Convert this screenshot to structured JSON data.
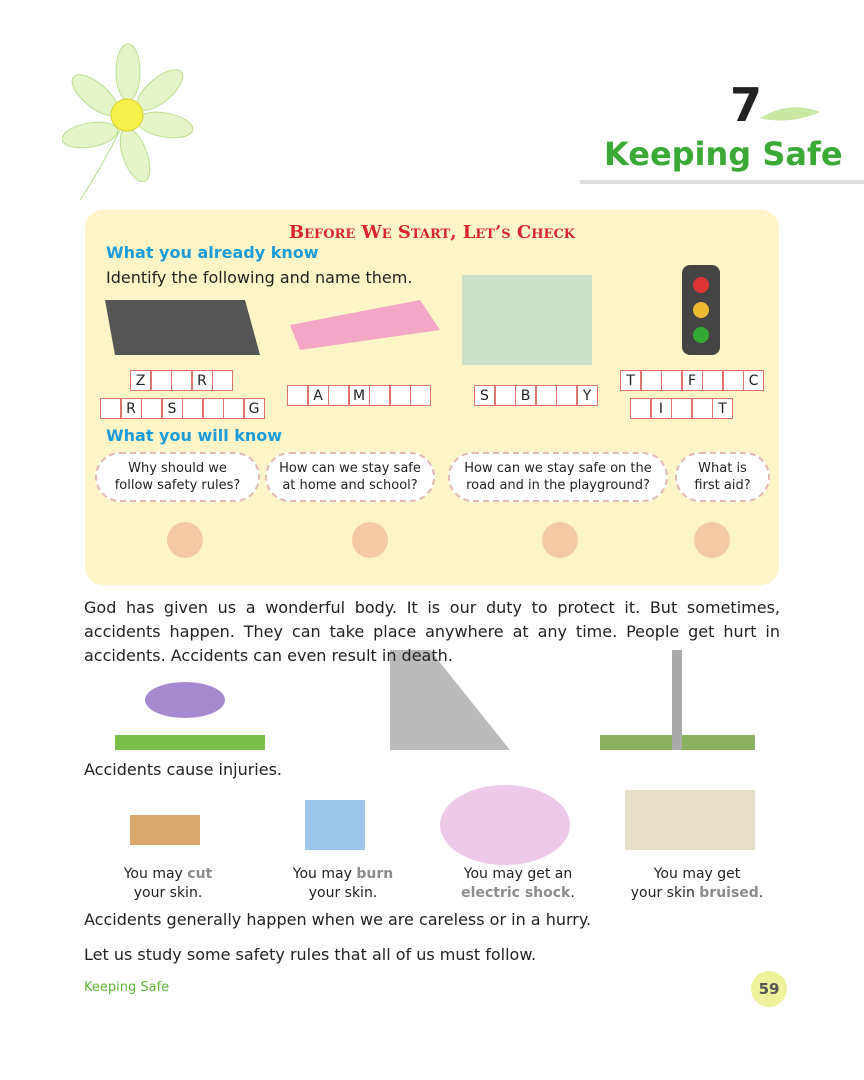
{
  "chapter": {
    "number": "7",
    "title": "Keeping Safe"
  },
  "check": {
    "heading": "Before We Start, Let’s Check",
    "already_know": "What you already know",
    "instruction": "Identify the following and name them.",
    "grids": [
      {
        "rows": [
          [
            "Z",
            null,
            null,
            "R",
            null
          ],
          [
            null,
            "R",
            null,
            "S",
            null,
            null,
            null,
            "G"
          ]
        ]
      },
      {
        "rows": [
          [
            null,
            "A",
            null,
            "M",
            null,
            null,
            null
          ]
        ]
      },
      {
        "rows": [
          [
            "S",
            null,
            "B",
            null,
            null,
            "Y"
          ]
        ]
      },
      {
        "rows": [
          [
            "T",
            null,
            null,
            "F",
            null,
            null,
            "C"
          ],
          [
            null,
            "I",
            null,
            null,
            "T"
          ]
        ]
      }
    ],
    "will_know": "What you will know",
    "questions": [
      "Why should we follow safety rules?",
      "How can we stay safe at home and school?",
      "How can we stay safe on the road and in the playground?",
      "What is first aid?"
    ]
  },
  "intro": "God has given us a wonderful body. It is our duty to protect it. But sometimes, accidents happen. They can take place anywhere at any time. People get hurt in accidents. Accidents can even result in death.",
  "injuries": "Accidents cause injuries.",
  "captions": [
    [
      "You may",
      "cut",
      "your skin."
    ],
    [
      "You may",
      "burn",
      "your skin."
    ],
    [
      "You may get an",
      "electric shock",
      "."
    ],
    [
      "You may get",
      "your skin",
      "bruised",
      "."
    ]
  ],
  "careless": "Accidents generally happen when we are careless or in a hurry.",
  "rules": "Let us study some safety rules that all of us must follow.",
  "footer": {
    "label": "Keeping Safe",
    "page": "59"
  }
}
